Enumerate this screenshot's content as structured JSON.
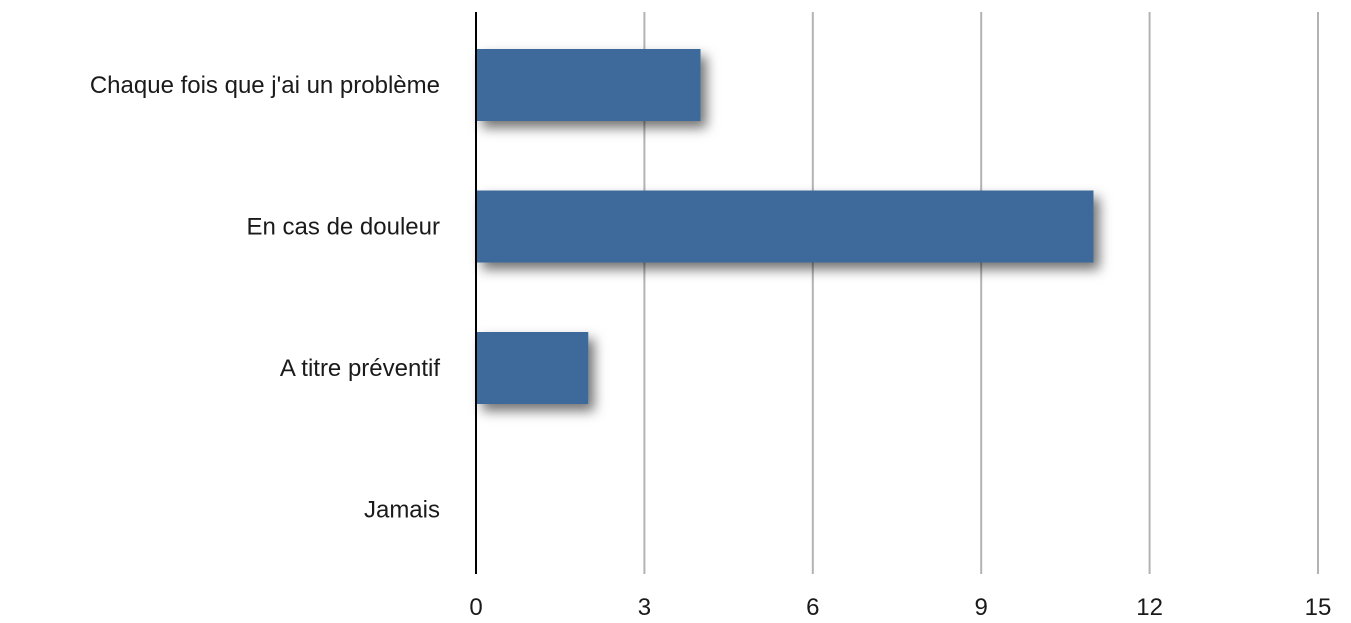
{
  "chart_data": {
    "type": "bar",
    "orientation": "horizontal",
    "categories": [
      "Chaque fois que j'ai un problème",
      "En cas de douleur",
      "A titre préventif",
      "Jamais"
    ],
    "values": [
      4,
      11,
      2,
      0
    ],
    "xlim": [
      0,
      15
    ],
    "xticks": [
      "0",
      "3",
      "6",
      "9",
      "12",
      "15"
    ],
    "title": "",
    "xlabel": "",
    "ylabel": "",
    "grid": "vertical",
    "legend": "none",
    "bar_color": "#3d6a9b",
    "grid_color": "#b3b3b3"
  }
}
